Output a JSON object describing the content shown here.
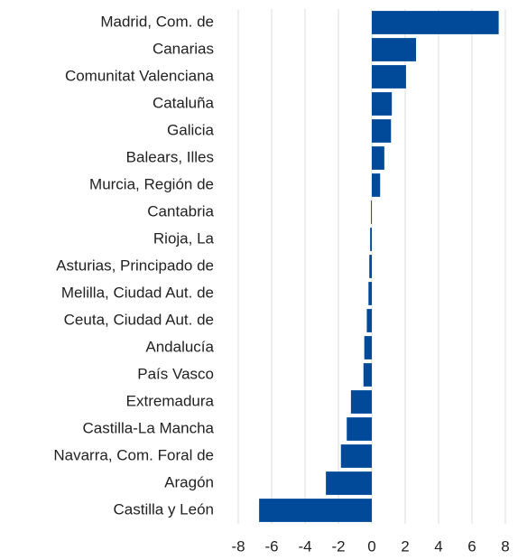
{
  "chart_data": {
    "type": "bar",
    "orientation": "horizontal",
    "categories": [
      "Madrid, Com. de",
      "Canarias",
      "Comunitat Valenciana",
      "Cataluña",
      "Galicia",
      "Balears, Illes",
      "Murcia, Región de",
      "Cantabria",
      "Rioja, La",
      "Asturias, Principado de",
      "Melilla, Ciudad Aut. de",
      "Ceuta, Ciudad Aut. de",
      "Andalucía",
      "País Vasco",
      "Extremadura",
      "Castilla-La Mancha",
      "Navarra, Com. Foral de",
      "Aragón",
      "Castilla y León"
    ],
    "values": [
      7.6,
      2.65,
      2.05,
      1.2,
      1.15,
      0.75,
      0.5,
      -0.05,
      -0.1,
      -0.15,
      -0.2,
      -0.3,
      -0.45,
      -0.5,
      -1.25,
      -1.5,
      -1.85,
      -2.75,
      -6.75
    ],
    "color": "#004a99",
    "xlim": [
      -8,
      8
    ],
    "xticks": [
      -8,
      -6,
      -4,
      -2,
      0,
      2,
      4,
      6,
      8
    ],
    "grid": true
  }
}
